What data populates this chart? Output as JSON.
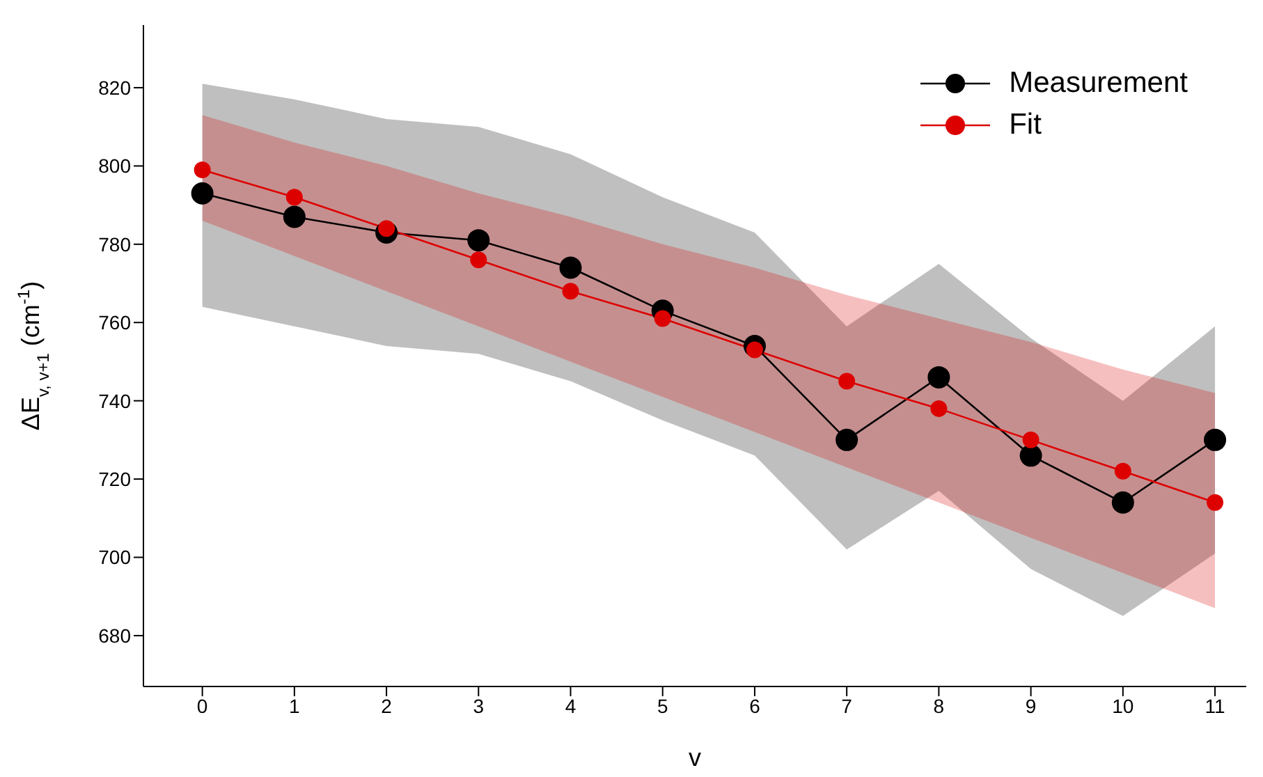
{
  "chart_data": {
    "type": "line",
    "xlabel": "v",
    "ylabel": "ΔE$_{v, v+1}$ (cm$^{-1}$)",
    "x": [
      0,
      1,
      2,
      3,
      4,
      5,
      6,
      7,
      8,
      9,
      10,
      11
    ],
    "xlim": [
      -0.64,
      11.34
    ],
    "xticks": [
      0,
      1,
      2,
      3,
      4,
      5,
      6,
      7,
      8,
      9,
      10,
      11
    ],
    "ylim": [
      667,
      836
    ],
    "yticks": [
      680,
      700,
      720,
      740,
      760,
      780,
      800,
      820
    ],
    "legend": "top right",
    "marker": "circle",
    "line_style": "solid",
    "series": [
      {
        "name": "Measurement",
        "color": "#000000",
        "values": [
          793,
          787,
          783,
          781,
          774,
          763,
          754,
          730,
          746,
          726,
          714,
          730
        ],
        "lower": [
          764,
          759,
          754,
          752,
          745,
          735,
          726,
          702,
          717,
          697,
          685,
          701
        ],
        "upper": [
          821,
          817,
          812,
          810,
          803,
          792,
          783,
          759,
          775,
          756,
          740,
          759
        ]
      },
      {
        "name": "Fit",
        "color": "#dd0000",
        "values": [
          799,
          792,
          784,
          776,
          768,
          761,
          753,
          745,
          738,
          730,
          722,
          714
        ],
        "lower": [
          786,
          777,
          768,
          759,
          750,
          741,
          732,
          723,
          714,
          705,
          696,
          687
        ],
        "upper": [
          813,
          806,
          800,
          793,
          787,
          780,
          774,
          767,
          761,
          755,
          748,
          742
        ]
      }
    ]
  }
}
